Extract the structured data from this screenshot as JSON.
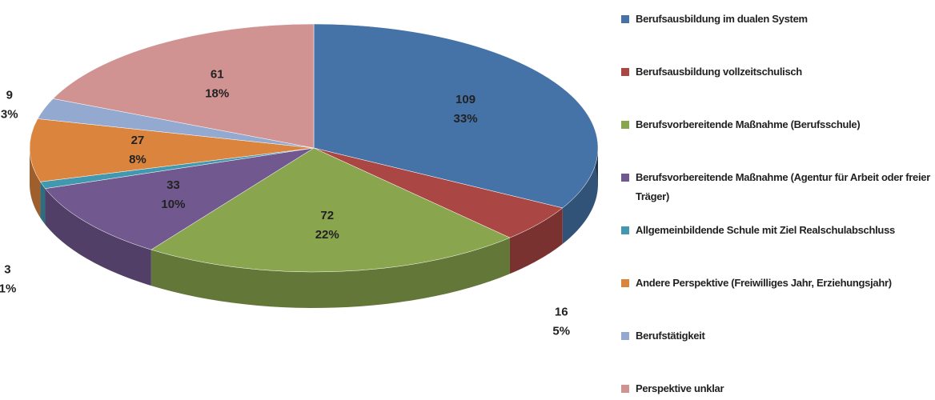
{
  "chart_data": {
    "type": "pie3d",
    "categories": [
      "Berufsausbildung im dualen System",
      "Berufsausbildung vollzeitschulisch",
      "Berufsvorbereitende Maßnahme (Berufsschule)",
      "Berufsvorbereitende Maßnahme (Agentur für Arbeit oder freier Träger)",
      "Allgemeinbildende Schule mit Ziel Realschulabschluss",
      "Andere Perspektive (Freiwilliges Jahr, Erziehungsjahr)",
      "Berufstätigkeit",
      "Perspektive unklar"
    ],
    "values": [
      109,
      16,
      72,
      33,
      3,
      27,
      9,
      61
    ],
    "percent_labels": [
      "33%",
      "5%",
      "22%",
      "10%",
      "1%",
      "8%",
      "3%",
      "18%"
    ],
    "colors": [
      "#4573a7",
      "#aa4643",
      "#89a54e",
      "#71588f",
      "#4198af",
      "#db843d",
      "#93a9cf",
      "#d19392"
    ],
    "legend": "right"
  }
}
